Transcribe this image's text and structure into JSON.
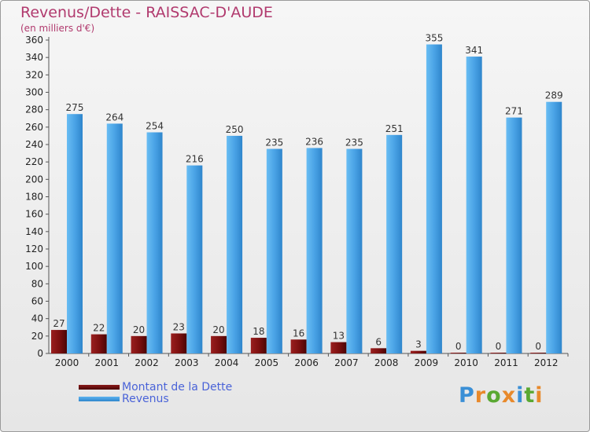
{
  "title": "Revenus/Dette - RAISSAC-D'AUDE",
  "subtitle": "(en milliers d'€)",
  "logo": "Proxiti",
  "chart_data": {
    "type": "bar",
    "title": "Revenus/Dette - RAISSAC-D'AUDE",
    "ylabel": "(en milliers d'€)",
    "xlabel": "",
    "categories": [
      "2000",
      "2001",
      "2002",
      "2003",
      "2004",
      "2005",
      "2006",
      "2007",
      "2008",
      "2009",
      "2010",
      "2011",
      "2012"
    ],
    "series": [
      {
        "name": "Montant de la Dette",
        "color": "#7a0f0f",
        "values": [
          27,
          22,
          20,
          23,
          20,
          18,
          16,
          13,
          6,
          3,
          0,
          0,
          0
        ]
      },
      {
        "name": "Revenus",
        "color": "#4aa3e6",
        "values": [
          275,
          264,
          254,
          216,
          250,
          235,
          236,
          235,
          251,
          355,
          341,
          271,
          289
        ]
      }
    ],
    "ylim": [
      0,
      360
    ],
    "yticks": [
      0,
      20,
      40,
      60,
      80,
      100,
      120,
      140,
      160,
      180,
      200,
      220,
      240,
      260,
      280,
      300,
      320,
      340,
      360
    ],
    "grid": false,
    "legend": "bottom-left"
  }
}
